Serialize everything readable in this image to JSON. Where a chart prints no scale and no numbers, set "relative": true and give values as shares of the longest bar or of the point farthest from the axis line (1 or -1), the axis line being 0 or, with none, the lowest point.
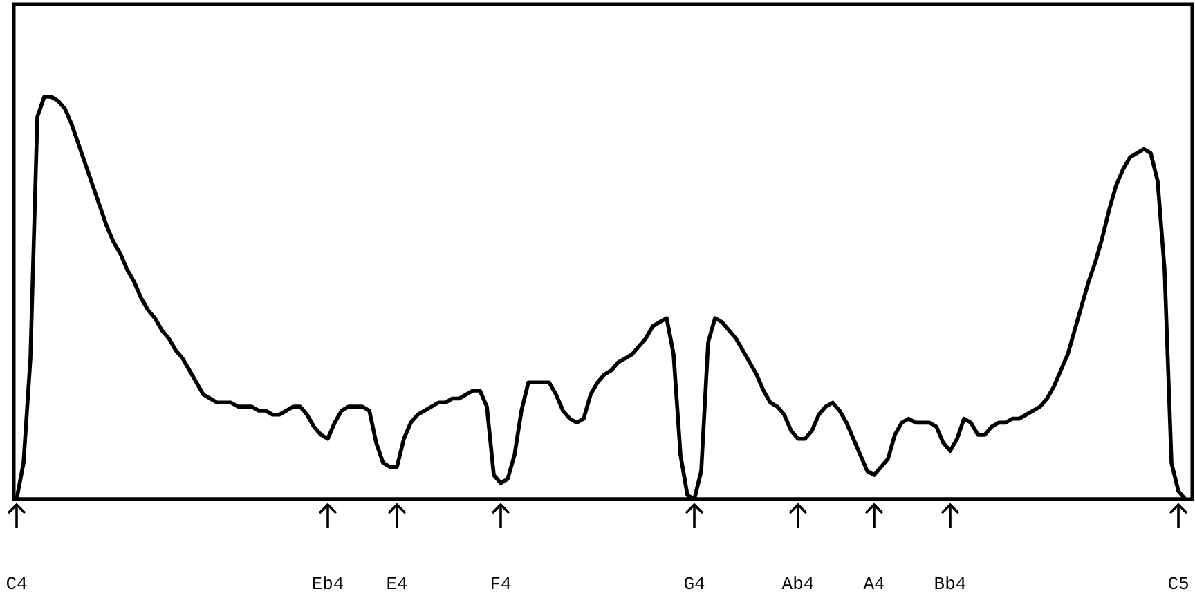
{
  "chart_data": {
    "type": "line",
    "relative": true,
    "tick_labels": "x",
    "line_style": "solid",
    "marker": "none",
    "categories": [
      "C4",
      null,
      null,
      null,
      null,
      null,
      null,
      null,
      null,
      null,
      null,
      null,
      null,
      null,
      null,
      null,
      null,
      null,
      null,
      null,
      null,
      null,
      null,
      null,
      null,
      null,
      null,
      null,
      null,
      null,
      null,
      null,
      null,
      null,
      null,
      null,
      null,
      null,
      null,
      null,
      null,
      null,
      null,
      null,
      null,
      "Eb4",
      null,
      null,
      null,
      null,
      null,
      null,
      null,
      null,
      null,
      "E4",
      null,
      null,
      null,
      null,
      null,
      null,
      null,
      null,
      null,
      null,
      null,
      null,
      null,
      null,
      "F4",
      null,
      null,
      null,
      null,
      null,
      null,
      null,
      null,
      null,
      null,
      null,
      null,
      null,
      null,
      null,
      null,
      null,
      null,
      null,
      null,
      null,
      null,
      null,
      null,
      null,
      null,
      null,
      "G4",
      null,
      null,
      null,
      null,
      null,
      null,
      null,
      null,
      null,
      null,
      null,
      null,
      null,
      null,
      "Ab4",
      null,
      null,
      null,
      null,
      null,
      null,
      null,
      null,
      null,
      null,
      "A4",
      null,
      null,
      null,
      null,
      null,
      null,
      null,
      null,
      null,
      null,
      "Bb4",
      null,
      null,
      null,
      null,
      null,
      null,
      null,
      null,
      null,
      null,
      null,
      null,
      null,
      null,
      null,
      null,
      null,
      null,
      null,
      null,
      null,
      null,
      null,
      null,
      null,
      null,
      null,
      null,
      null,
      null,
      null,
      null,
      "C5",
      null
    ],
    "series": [
      {
        "color": "#000000",
        "values": [
          0,
          0.09,
          0.35,
          0.95,
          1,
          1,
          0.99,
          0.97,
          0.93,
          0.88,
          0.83,
          0.78,
          0.73,
          0.68,
          0.64,
          0.61,
          0.57,
          0.54,
          0.5,
          0.47,
          0.45,
          0.42,
          0.4,
          0.37,
          0.35,
          0.32,
          0.29,
          0.26,
          0.25,
          0.24,
          0.24,
          0.24,
          0.23,
          0.23,
          0.23,
          0.22,
          0.22,
          0.21,
          0.21,
          0.22,
          0.23,
          0.23,
          0.21,
          0.18,
          0.16,
          0.15,
          0.19,
          0.22,
          0.23,
          0.23,
          0.23,
          0.22,
          0.14,
          0.09,
          0.08,
          0.08,
          0.15,
          0.19,
          0.21,
          0.22,
          0.23,
          0.24,
          0.24,
          0.25,
          0.25,
          0.26,
          0.27,
          0.27,
          0.23,
          0.06,
          0.04,
          0.05,
          0.11,
          0.22,
          0.29,
          0.29,
          0.29,
          0.29,
          0.26,
          0.22,
          0.2,
          0.19,
          0.2,
          0.26,
          0.29,
          0.31,
          0.32,
          0.34,
          0.35,
          0.36,
          0.38,
          0.4,
          0.43,
          0.44,
          0.45,
          0.36,
          0.11,
          0.01,
          0,
          0.07,
          0.39,
          0.45,
          0.44,
          0.42,
          0.4,
          0.37,
          0.34,
          0.31,
          0.27,
          0.24,
          0.23,
          0.21,
          0.17,
          0.15,
          0.15,
          0.17,
          0.21,
          0.23,
          0.24,
          0.22,
          0.19,
          0.15,
          0.11,
          0.07,
          0.06,
          0.08,
          0.1,
          0.16,
          0.19,
          0.2,
          0.19,
          0.19,
          0.19,
          0.18,
          0.14,
          0.12,
          0.15,
          0.2,
          0.19,
          0.16,
          0.16,
          0.18,
          0.19,
          0.19,
          0.2,
          0.2,
          0.21,
          0.22,
          0.23,
          0.25,
          0.28,
          0.32,
          0.36,
          0.42,
          0.48,
          0.54,
          0.59,
          0.65,
          0.72,
          0.78,
          0.82,
          0.85,
          0.86,
          0.87,
          0.86,
          0.79,
          0.57,
          0.09,
          0.02,
          0
        ]
      }
    ]
  }
}
